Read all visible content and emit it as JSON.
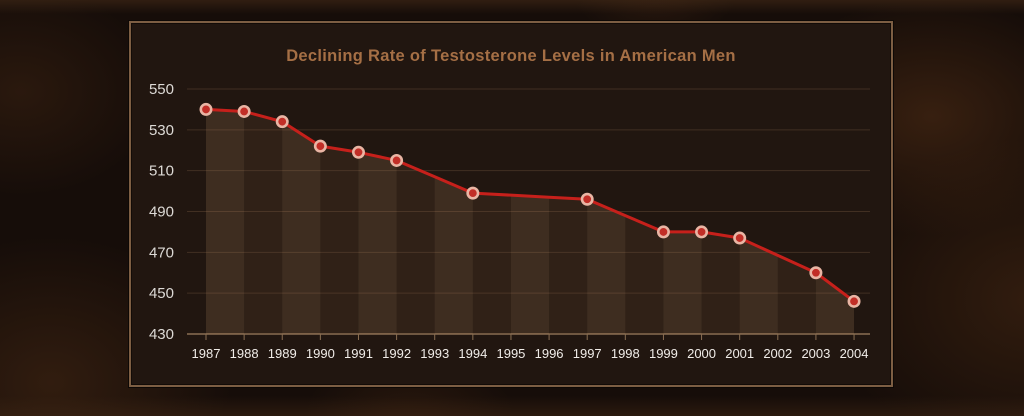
{
  "chart_data": {
    "type": "line",
    "title": "Declining Rate of Testosterone Levels in American Men",
    "x": [
      1987,
      1988,
      1989,
      1990,
      1991,
      1992,
      1993,
      1994,
      1995,
      1996,
      1997,
      1998,
      1999,
      2000,
      2001,
      2002,
      2003,
      2004
    ],
    "x_labels": [
      "1987",
      "1988",
      "1989",
      "1990",
      "1991",
      "1992",
      "1993",
      "1994",
      "1995",
      "1996",
      "1997",
      "1998",
      "1999",
      "2000",
      "2001",
      "2002",
      "2003",
      "2004"
    ],
    "values": [
      540,
      539,
      534,
      522,
      519,
      515,
      null,
      499,
      null,
      null,
      496,
      null,
      480,
      480,
      477,
      null,
      460,
      446
    ],
    "xlabel": "",
    "ylabel": "",
    "ylim": [
      430,
      550
    ],
    "yticks": [
      430,
      450,
      470,
      490,
      510,
      530,
      550
    ],
    "grid": true,
    "legend": "none",
    "colors": {
      "line": "#c6201b",
      "marker_fill": "#c12e27",
      "marker_ring": "#e9b5a4",
      "grid_line": "rgba(196,152,112,0.20)",
      "axis_line": "#8a6e52",
      "area_fill": "rgba(173,128,92,0.13)",
      "stripe_light": "rgba(216,166,120,0.075)",
      "stripe_dark": "rgba(10,4,2,0.06)",
      "y_label": "#dddad6",
      "x_label": "#f0ece8",
      "title": "#a56f45",
      "panel_border": "#7d5e43",
      "panel_bg": "#211610"
    }
  }
}
